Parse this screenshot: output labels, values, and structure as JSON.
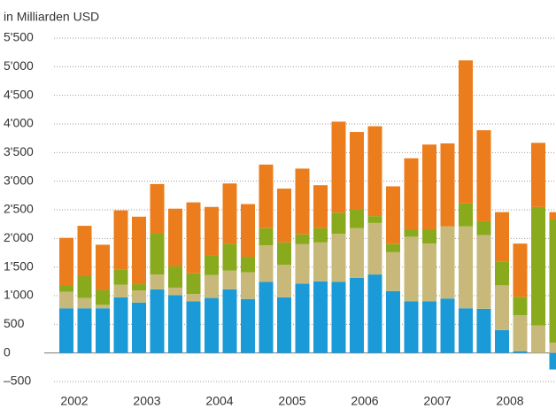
{
  "chart_data": {
    "type": "bar",
    "stacked": true,
    "title": "in Milliarden USD",
    "categories": [
      "2002",
      null,
      null,
      null,
      "2003",
      null,
      null,
      null,
      "2004",
      null,
      null,
      null,
      "2005",
      null,
      null,
      null,
      "2006",
      null,
      null,
      null,
      "2007",
      null,
      null,
      null,
      "2008",
      null,
      null,
      null
    ],
    "series": [
      {
        "color": "#1a9ad6",
        "values": [
          780,
          780,
          780,
          970,
          880,
          1110,
          1010,
          900,
          960,
          1110,
          940,
          1240,
          970,
          1210,
          1250,
          1240,
          1310,
          1370,
          1080,
          900,
          900,
          950,
          780,
          770,
          400,
          30,
          0,
          -290
        ]
      },
      {
        "color": "#c8b97a",
        "values": [
          290,
          180,
          60,
          220,
          210,
          260,
          130,
          130,
          400,
          330,
          470,
          640,
          570,
          690,
          680,
          840,
          870,
          900,
          680,
          1130,
          1010,
          1260,
          1430,
          1290,
          780,
          630,
          480,
          180
        ]
      },
      {
        "color": "#8aaa1e",
        "values": [
          100,
          380,
          260,
          260,
          110,
          720,
          370,
          360,
          350,
          470,
          270,
          300,
          390,
          170,
          250,
          370,
          320,
          120,
          140,
          130,
          250,
          0,
          400,
          240,
          410,
          320,
          2070,
          2150
        ]
      },
      {
        "color": "#ec7d1c",
        "values": [
          840,
          880,
          790,
          1040,
          1180,
          860,
          1010,
          1240,
          840,
          1050,
          920,
          1110,
          940,
          1150,
          750,
          1590,
          1360,
          1570,
          1010,
          1240,
          1480,
          1450,
          2500,
          1590,
          870,
          930,
          1120,
          130
        ]
      }
    ],
    "ylim": [
      -500,
      5500
    ],
    "yticks": [
      {
        "value": -500,
        "label": "–500"
      },
      0,
      500,
      {
        "value": 1000,
        "label": "1'000"
      },
      {
        "value": 1500,
        "label": "1'500"
      },
      {
        "value": 2000,
        "label": "2'000"
      },
      {
        "value": 2500,
        "label": "2'500"
      },
      {
        "value": 3000,
        "label": "3'000"
      },
      {
        "value": 3500,
        "label": "3'500"
      },
      {
        "value": 4000,
        "label": "4'000"
      },
      {
        "value": 4500,
        "label": "4'500"
      },
      {
        "value": 5000,
        "label": "5'000"
      },
      {
        "value": 5500,
        "label": "5'500"
      }
    ],
    "grid": true
  }
}
